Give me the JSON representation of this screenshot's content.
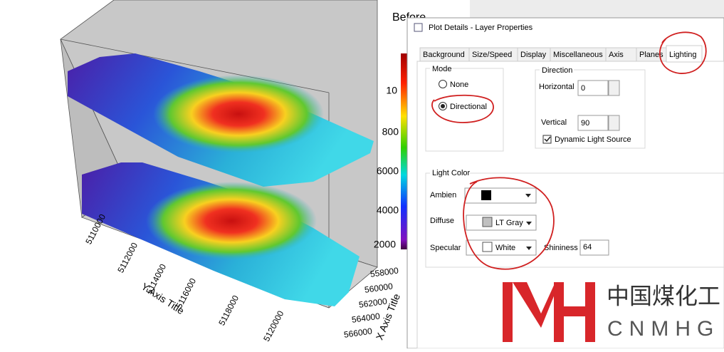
{
  "plot": {
    "title": "Before",
    "colorbar_labels": [
      "10",
      "800",
      "6000",
      "4000",
      "2000"
    ],
    "y_axis": {
      "title": "Y Axis Title",
      "ticks": [
        "5110000",
        "5112000",
        "5114000",
        "5116000",
        "5118000",
        "5120000"
      ]
    },
    "x_axis": {
      "title": "X Axis Title",
      "ticks": [
        "558000",
        "560000",
        "562000",
        "564000",
        "566000"
      ]
    }
  },
  "dialog": {
    "title": "Plot Details - Layer Properties",
    "tabs": [
      "Background",
      "Size/Speed",
      "Display",
      "Miscellaneous",
      "Axis",
      "Planes",
      "Lighting"
    ],
    "mode": {
      "label": "Mode",
      "options": [
        "None",
        "Directional"
      ]
    },
    "direction": {
      "label": "Direction",
      "horizontal_label": "Horizontal",
      "horizontal": "0",
      "vertical_label": "Vertical",
      "vertical": "90",
      "dynamic": "Dynamic Light Source"
    },
    "light_color": {
      "label": "Light Color",
      "ambient_label": "Ambien",
      "diffuse_label": "Diffuse",
      "diffuse": "LT Gray",
      "specular_label": "Specular",
      "specular": "White",
      "shininess_label": "Shininess",
      "shininess": "64"
    }
  },
  "logo": {
    "chinese": "中国煤化工",
    "latin": "CNMHG"
  }
}
